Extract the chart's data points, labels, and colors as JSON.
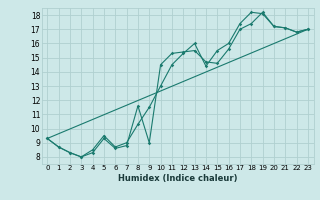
{
  "xlabel": "Humidex (Indice chaleur)",
  "background_color": "#cde8e8",
  "grid_color": "#b0d0d0",
  "line_color": "#1a7a6e",
  "xlim": [
    -0.5,
    23.5
  ],
  "ylim": [
    7.5,
    18.5
  ],
  "xticks": [
    0,
    1,
    2,
    3,
    4,
    5,
    6,
    7,
    8,
    9,
    10,
    11,
    12,
    13,
    14,
    15,
    16,
    17,
    18,
    19,
    20,
    21,
    22,
    23
  ],
  "yticks": [
    8,
    9,
    10,
    11,
    12,
    13,
    14,
    15,
    16,
    17,
    18
  ],
  "line1_x": [
    0,
    1,
    2,
    3,
    4,
    5,
    6,
    7,
    8,
    9,
    10,
    11,
    12,
    13,
    14,
    15,
    16,
    17,
    18,
    19,
    20,
    21,
    22,
    23
  ],
  "line1_y": [
    9.3,
    8.7,
    8.3,
    8.0,
    8.5,
    9.5,
    8.7,
    9.0,
    10.3,
    11.5,
    13.0,
    14.5,
    15.3,
    16.0,
    14.4,
    15.5,
    16.0,
    17.4,
    18.2,
    18.1,
    17.2,
    17.1,
    16.8,
    17.0
  ],
  "line2_x": [
    0,
    1,
    2,
    3,
    4,
    5,
    6,
    7,
    8,
    9,
    10,
    11,
    12,
    13,
    14,
    15,
    16,
    17,
    18,
    19,
    20,
    21,
    22,
    23
  ],
  "line2_y": [
    9.3,
    8.7,
    8.3,
    8.0,
    8.3,
    9.3,
    8.6,
    8.8,
    11.6,
    9.0,
    14.5,
    15.3,
    15.4,
    15.5,
    14.7,
    14.6,
    15.6,
    17.0,
    17.4,
    18.2,
    17.2,
    17.1,
    16.8,
    17.0
  ],
  "line3_x": [
    0,
    23
  ],
  "line3_y": [
    9.3,
    17.0
  ]
}
